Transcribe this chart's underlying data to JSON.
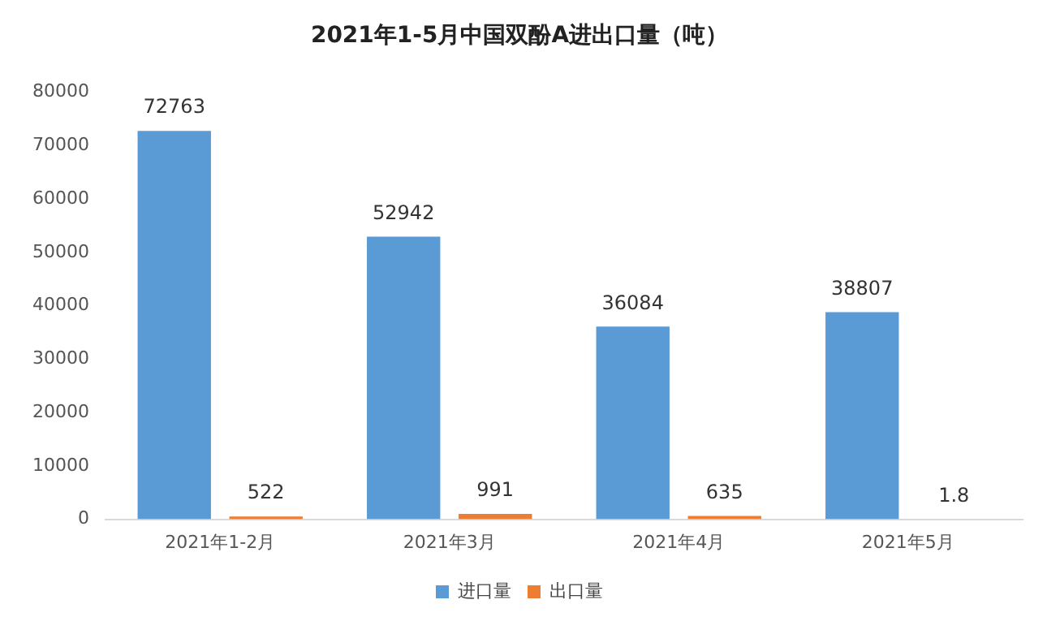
{
  "chart_data": {
    "type": "bar",
    "title": "2021年1-5月中国双酚A进出口量（吨）",
    "categories": [
      "2021年1-2月",
      "2021年3月",
      "2021年4月",
      "2021年5月"
    ],
    "series": [
      {
        "name": "进口量",
        "color": "#5b9bd5",
        "values": [
          72763,
          52942,
          36084,
          38807
        ]
      },
      {
        "name": "出口量",
        "color": "#ed7d31",
        "values": [
          522,
          991,
          635,
          1.8
        ]
      }
    ],
    "ylim": [
      0,
      80000
    ],
    "yticks": [
      0,
      10000,
      20000,
      30000,
      40000,
      50000,
      60000,
      70000,
      80000
    ],
    "grid": false,
    "legend": "bottom",
    "data_labels": true
  }
}
